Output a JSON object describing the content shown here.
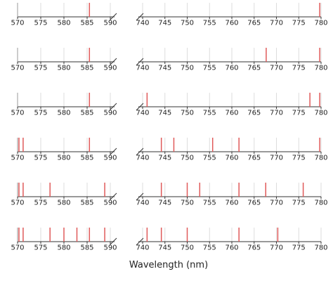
{
  "chart_data": {
    "type": "spectral-lines",
    "xlabel": "Wavelength (nm)",
    "color": "#e05a5a",
    "grid": true,
    "left": {
      "xlim": [
        570,
        590
      ],
      "xticks": [
        570,
        575,
        580,
        585,
        590
      ]
    },
    "right": {
      "xlim": [
        740,
        780
      ],
      "xticks": [
        740,
        745,
        750,
        755,
        760,
        765,
        770,
        775,
        780
      ]
    },
    "rows": [
      {
        "left": [
          585.5
        ],
        "right": [
          779.7
        ]
      },
      {
        "left": [
          585.5
        ],
        "right": [
          767.7,
          779.7
        ]
      },
      {
        "left": [
          585.5
        ],
        "right": [
          741,
          777.5,
          779.7
        ]
      },
      {
        "left": [
          570.3,
          571.2,
          585.5
        ],
        "right": [
          744.2,
          747,
          755.7,
          761.6,
          779.7
        ]
      },
      {
        "left": [
          570.3,
          571.2,
          577,
          588.8
        ],
        "right": [
          744.2,
          750,
          752.8,
          761.6,
          767.6,
          776
        ]
      },
      {
        "left": [
          570.3,
          571.2,
          577,
          580,
          582.8,
          585.5,
          588.8
        ],
        "right": [
          741,
          744.2,
          750,
          761.6,
          770.3
        ]
      }
    ]
  }
}
